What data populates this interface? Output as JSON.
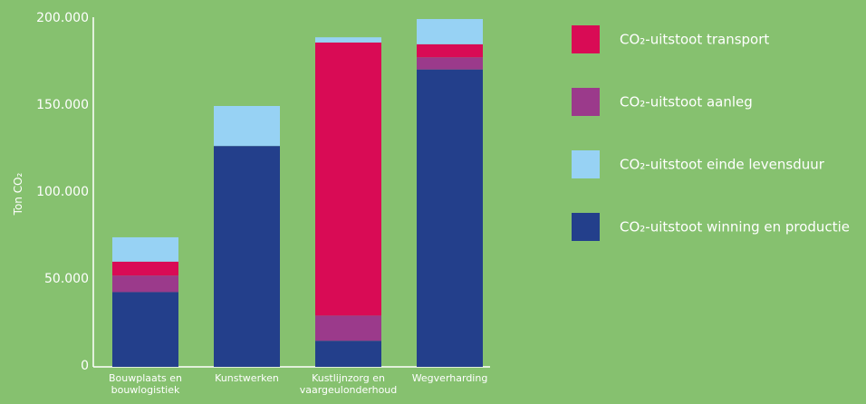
{
  "chart_data": {
    "type": "bar",
    "stacked": true,
    "ylabel": "Ton CO₂",
    "ylim": [
      0,
      200000
    ],
    "yticks": [
      0,
      50000,
      100000,
      150000,
      200000
    ],
    "ytick_labels": [
      "0",
      "50.000",
      "100.000",
      "150.000",
      "200.000"
    ],
    "categories": [
      [
        "Bouwplaats en",
        "bouwlogistiek"
      ],
      [
        "Kunstwerken"
      ],
      [
        "Kustlijnzorg en",
        "vaargeulonderhoud"
      ],
      [
        "Wegverharding"
      ]
    ],
    "series": [
      {
        "name": "CO₂-uitstoot winning en productie",
        "color": "#233f8b",
        "values": [
          43000,
          127000,
          15000,
          171000
        ]
      },
      {
        "name": "CO₂-uitstoot aanleg",
        "color": "#9b3a8b",
        "values": [
          9500,
          0,
          14500,
          7000
        ]
      },
      {
        "name": "CO₂-uitstoot transport",
        "color": "#d90b55",
        "values": [
          8000,
          0,
          157000,
          7500
        ]
      },
      {
        "name": "CO₂-uitstoot einde levensduur",
        "color": "#97d2f4",
        "values": [
          14000,
          23000,
          3000,
          14500
        ]
      }
    ],
    "legend": {
      "placement": "right",
      "order": [
        2,
        1,
        3,
        0
      ]
    },
    "grid": false
  }
}
